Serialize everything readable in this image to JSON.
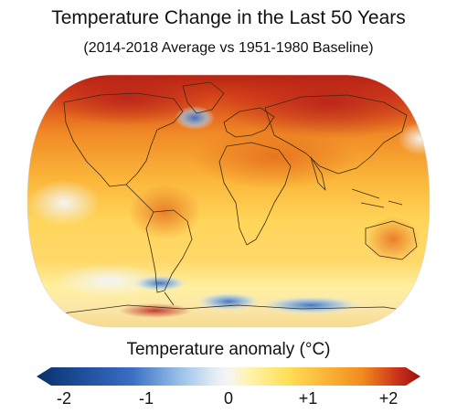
{
  "title": "Temperature Change in the Last 50 Years",
  "subtitle": "(2014-2018 Average vs 1951-1980 Baseline)",
  "legend": {
    "title": "Temperature anomaly (°C)",
    "ticks": [
      "-2",
      "-1",
      "0",
      "+1",
      "+2"
    ],
    "range": [
      -2,
      2
    ],
    "colors": {
      "strong_cold": "#08306b",
      "cold": "#3a6fc4",
      "cool": "#9ec5ea",
      "neutral": "#f5f5f5",
      "warm": "#ffe05a",
      "hot": "#f28a1e",
      "strong_hot": "#9a0f0f"
    }
  },
  "map": {
    "projection": "Robinson",
    "coastline_color": "#3a2a10"
  }
}
